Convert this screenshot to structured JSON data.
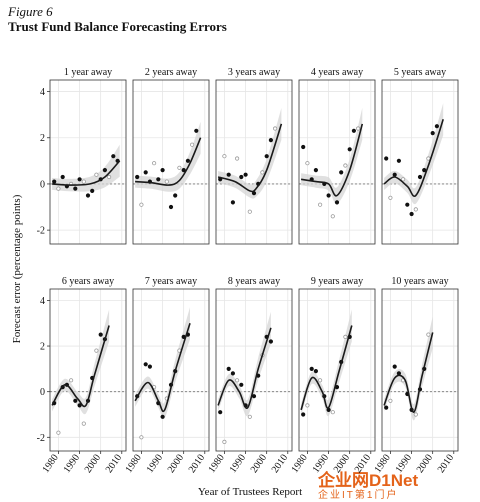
{
  "figure": {
    "label": "Figure 6",
    "title": "Trust Fund Balance Forecasting Errors",
    "ylabel": "Forecast error (percentage points)",
    "xlabel": "Year of Trustees Report"
  },
  "watermark": {
    "main": "企业网D1Net",
    "sub": "企业IT第1门户"
  },
  "colors": {
    "line": "#1a1a1a",
    "band": "#d6d6d6",
    "point_dark": "#111111",
    "point_light": "#9a9a9a",
    "grid": "#e6e6e6",
    "dashed": "#777777"
  },
  "axes": {
    "y_ticks": [
      -2,
      0,
      2,
      4
    ],
    "y_tick_labels": [
      "-2",
      "0",
      "2",
      "4"
    ],
    "x_ticks": [
      1980,
      1990,
      2000,
      2010
    ],
    "x_tick_labels": [
      "1980",
      "1990",
      "2000",
      "2010"
    ],
    "ylim": [
      -2.6,
      4.5
    ],
    "xlim": [
      1976,
      2012
    ]
  },
  "chart_data": [
    {
      "type": "scatter",
      "title": "1 year away",
      "x": [
        1978,
        1980,
        1982,
        1984,
        1986,
        1988,
        1990,
        1992,
        1994,
        1996,
        1998,
        2000,
        2002,
        2004,
        2006,
        2008
      ],
      "y": [
        0.1,
        -0.2,
        0.3,
        -0.1,
        0.0,
        -0.2,
        0.2,
        0.1,
        -0.5,
        -0.3,
        0.4,
        0.2,
        0.6,
        0.3,
        1.2,
        1.0
      ],
      "fit_x": [
        1977,
        1985,
        1995,
        2002,
        2009
      ],
      "fit_y": [
        0.0,
        -0.05,
        0.0,
        0.3,
        1.0
      ]
    },
    {
      "type": "scatter",
      "title": "2 years away",
      "x": [
        1978,
        1980,
        1982,
        1984,
        1986,
        1988,
        1990,
        1992,
        1994,
        1996,
        1998,
        2000,
        2002,
        2004,
        2006
      ],
      "y": [
        0.3,
        -0.9,
        0.5,
        0.1,
        0.9,
        0.2,
        0.6,
        0.1,
        -1.0,
        -0.5,
        0.7,
        0.6,
        1.0,
        1.7,
        2.3
      ],
      "fit_x": [
        1977,
        1985,
        1993,
        1998,
        2003,
        2008
      ],
      "fit_y": [
        0.1,
        0.05,
        -0.05,
        0.15,
        0.9,
        2.0
      ]
    },
    {
      "type": "scatter",
      "title": "3 years away",
      "x": [
        1978,
        1980,
        1982,
        1984,
        1986,
        1988,
        1990,
        1992,
        1994,
        1996,
        1998,
        2000,
        2002,
        2004
      ],
      "y": [
        0.2,
        1.2,
        0.4,
        -0.8,
        1.1,
        0.3,
        0.4,
        -1.2,
        -0.4,
        0.0,
        0.5,
        1.2,
        1.9,
        2.4
      ],
      "fit_x": [
        1977,
        1985,
        1992,
        1995,
        2000,
        2007
      ],
      "fit_y": [
        0.3,
        0.1,
        -0.3,
        -0.2,
        0.6,
        2.6
      ]
    },
    {
      "type": "scatter",
      "title": "4 years away",
      "x": [
        1978,
        1980,
        1982,
        1984,
        1986,
        1988,
        1990,
        1992,
        1994,
        1996,
        1998,
        2000,
        2002,
        2004
      ],
      "y": [
        1.6,
        0.9,
        0.2,
        0.6,
        -0.9,
        0.0,
        -0.5,
        -1.4,
        -0.8,
        0.5,
        0.8,
        1.5,
        2.3,
        2.4
      ],
      "fit_x": [
        1977,
        1984,
        1990,
        1994,
        2000,
        2006
      ],
      "fit_y": [
        0.2,
        0.1,
        0.0,
        -0.5,
        0.6,
        2.6
      ]
    },
    {
      "type": "scatter",
      "title": "5 years away",
      "x": [
        1978,
        1980,
        1982,
        1984,
        1986,
        1988,
        1990,
        1992,
        1994,
        1996,
        1998,
        2000,
        2002
      ],
      "y": [
        1.1,
        -0.6,
        0.4,
        1.0,
        0.2,
        -0.9,
        -1.3,
        -1.1,
        0.3,
        0.6,
        1.1,
        2.2,
        2.5
      ],
      "fit_x": [
        1977,
        1982,
        1988,
        1992,
        1998,
        2005
      ],
      "fit_y": [
        0.0,
        0.3,
        -0.1,
        -0.5,
        0.8,
        2.8
      ]
    },
    {
      "type": "scatter",
      "title": "6 years away",
      "x": [
        1978,
        1980,
        1982,
        1984,
        1986,
        1988,
        1990,
        1992,
        1994,
        1996,
        1998,
        2000,
        2002
      ],
      "y": [
        -0.5,
        -1.8,
        0.2,
        0.3,
        0.5,
        -0.4,
        -0.6,
        -1.4,
        -0.4,
        0.6,
        1.8,
        2.5,
        2.3
      ],
      "fit_x": [
        1977,
        1983,
        1989,
        1993,
        1997,
        2004
      ],
      "fit_y": [
        -0.6,
        0.3,
        -0.3,
        -0.6,
        0.7,
        2.9
      ]
    },
    {
      "type": "scatter",
      "title": "7 years away",
      "x": [
        1978,
        1980,
        1982,
        1984,
        1986,
        1988,
        1990,
        1992,
        1994,
        1996,
        1998,
        2000,
        2002
      ],
      "y": [
        -0.2,
        -2.0,
        1.2,
        1.1,
        0.2,
        -0.5,
        -1.1,
        -0.3,
        0.3,
        0.9,
        1.8,
        2.4,
        2.5
      ],
      "fit_x": [
        1977,
        1983,
        1988,
        1991,
        1996,
        2003
      ],
      "fit_y": [
        -0.4,
        0.4,
        -0.4,
        -0.8,
        0.9,
        3.0
      ]
    },
    {
      "type": "scatter",
      "title": "8 years away",
      "x": [
        1978,
        1980,
        1982,
        1984,
        1986,
        1988,
        1990,
        1992,
        1994,
        1996,
        1998,
        2000,
        2002
      ],
      "y": [
        -0.9,
        -2.2,
        1.0,
        0.8,
        0.5,
        0.3,
        -0.6,
        -1.1,
        -0.2,
        0.7,
        1.6,
        2.4,
        2.2
      ],
      "fit_x": [
        1977,
        1982,
        1987,
        1991,
        1996,
        2002
      ],
      "fit_y": [
        -0.6,
        0.5,
        0.0,
        -0.7,
        1.0,
        2.8
      ]
    },
    {
      "type": "scatter",
      "title": "9 years away",
      "x": [
        1978,
        1980,
        1982,
        1984,
        1986,
        1988,
        1990,
        1992,
        1994,
        1996,
        1998,
        2000
      ],
      "y": [
        -1.0,
        -0.6,
        1.0,
        0.9,
        0.5,
        -0.2,
        -0.8,
        -0.9,
        0.2,
        1.3,
        2.4,
        2.4
      ],
      "fit_x": [
        1977,
        1982,
        1987,
        1990,
        1995,
        2001
      ],
      "fit_y": [
        -0.8,
        0.6,
        0.0,
        -0.7,
        0.9,
        2.9
      ]
    },
    {
      "type": "scatter",
      "title": "10 years away",
      "x": [
        1978,
        1980,
        1982,
        1984,
        1986,
        1988,
        1990,
        1992,
        1994,
        1996,
        1998
      ],
      "y": [
        -0.7,
        -0.4,
        1.1,
        0.8,
        0.5,
        -0.1,
        -0.8,
        -1.0,
        0.1,
        1.0,
        2.5
      ],
      "fit_x": [
        1977,
        1982,
        1987,
        1991,
        1995,
        2000
      ],
      "fit_y": [
        -0.6,
        0.6,
        0.5,
        -0.9,
        0.7,
        2.6
      ]
    }
  ]
}
